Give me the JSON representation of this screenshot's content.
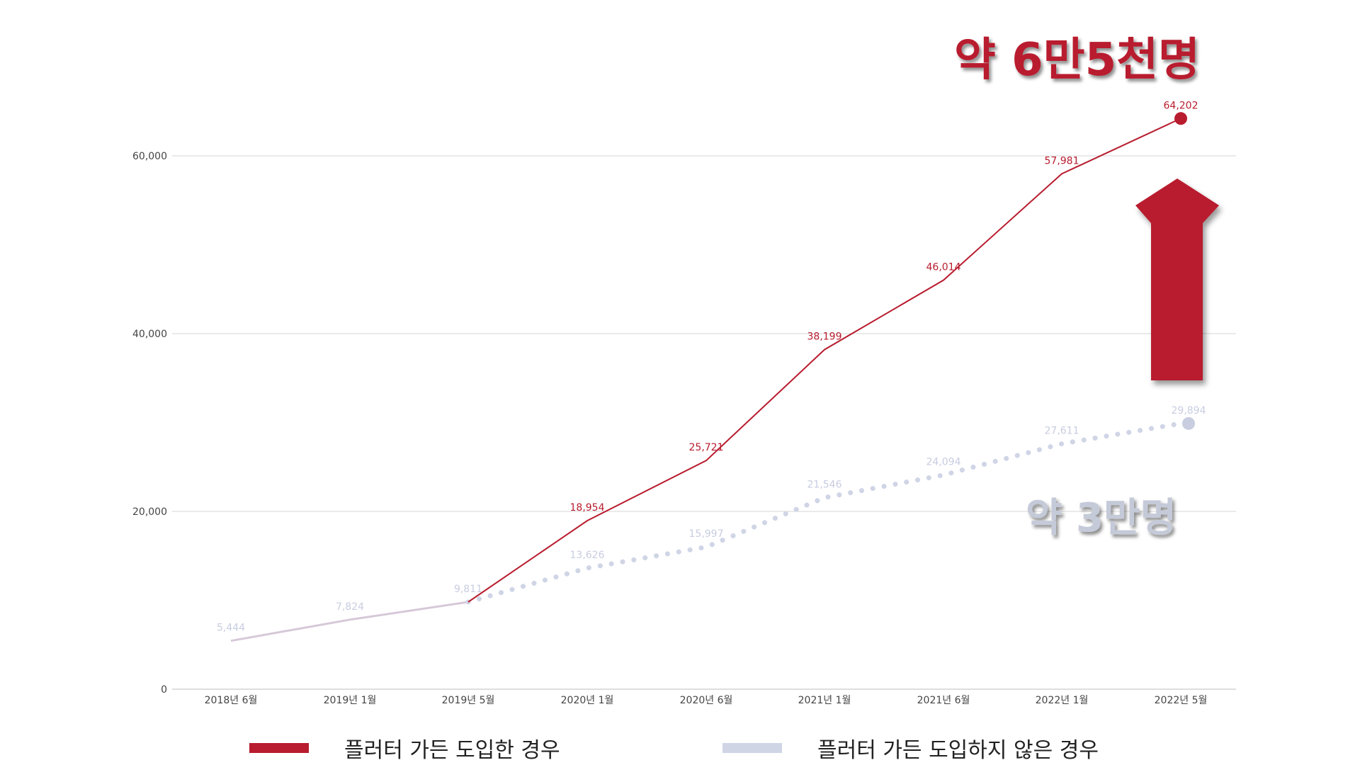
{
  "chart_data": {
    "type": "line",
    "categories": [
      "2018년 6월",
      "2019년 1월",
      "2019년 5월",
      "2020년 1월",
      "2020년 6월",
      "2021년 1월",
      "2021년 6월",
      "2022년 1월",
      "2022년 5월"
    ],
    "yticks": [
      "0",
      "20,000",
      "40,000",
      "60,000"
    ],
    "ylim": [
      0,
      70000
    ],
    "grid": true,
    "legend_position": "bottom",
    "series": [
      {
        "name": "플러터 가든 도입한 경우",
        "color": "#b81c2e",
        "style": "solid",
        "values": [
          5444,
          7824,
          9811,
          18954,
          25721,
          38199,
          46014,
          57981,
          64202
        ],
        "labels": [
          "",
          "",
          "",
          "18,954",
          "25,721",
          "38,199",
          "46,014",
          "57,981",
          "64,202"
        ]
      },
      {
        "name": "플러터 가든 도입하지 않은 경우",
        "color": "#d0d5e6",
        "style": "dotted",
        "values": [
          5444,
          7824,
          9811,
          13626,
          15997,
          21546,
          24094,
          27611,
          29894
        ],
        "labels": [
          "5,444",
          "7,824",
          "9,811",
          "13,626",
          "15,997",
          "21,546",
          "24,094",
          "27,611",
          "29,894"
        ]
      }
    ],
    "annotations": {
      "top": "약 6만5천명",
      "bottom": "약 3만명"
    }
  }
}
